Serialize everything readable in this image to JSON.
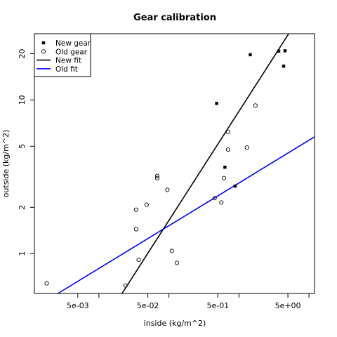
{
  "chart_data": {
    "type": "scatter",
    "title": "Gear calibration",
    "xlabel": "inside (kg/m^2)",
    "ylabel": "outside (kg/m^2)",
    "x_scale": "log",
    "y_scale": "log",
    "xlim": [
      0.0012,
      12
    ],
    "ylim": [
      0.55,
      27
    ],
    "x_ticks": [
      {
        "value": 0.005,
        "label": "5e-03"
      },
      {
        "value": 0.05,
        "label": "5e-02"
      },
      {
        "value": 0.5,
        "label": "5e-01"
      },
      {
        "value": 5,
        "label": "5e+00"
      }
    ],
    "x_minor_ticks": [
      0.01,
      0.1,
      1,
      10
    ],
    "y_ticks": [
      {
        "value": 1,
        "label": "1"
      },
      {
        "value": 2,
        "label": "2"
      },
      {
        "value": 5,
        "label": "5"
      },
      {
        "value": 10,
        "label": "10"
      },
      {
        "value": 20,
        "label": "20"
      }
    ],
    "grid": false,
    "legend_position": "top-left",
    "series": [
      {
        "name": "New gear",
        "marker": "filled-square",
        "color": "#000000",
        "points": [
          [
            0.48,
            9.5
          ],
          [
            0.88,
            2.75
          ],
          [
            0.63,
            3.65
          ],
          [
            1.45,
            19.7
          ],
          [
            3.7,
            20.8
          ],
          [
            4.55,
            20.9
          ],
          [
            4.35,
            16.6
          ]
        ]
      },
      {
        "name": "Old gear",
        "marker": "open-circle",
        "color": "#000000",
        "points": [
          [
            0.0018,
            0.64
          ],
          [
            0.024,
            0.62
          ],
          [
            0.034,
            1.93
          ],
          [
            0.034,
            1.44
          ],
          [
            0.037,
            0.91
          ],
          [
            0.048,
            2.08
          ],
          [
            0.068,
            3.1
          ],
          [
            0.068,
            3.2
          ],
          [
            0.095,
            2.6
          ],
          [
            0.11,
            1.04
          ],
          [
            0.13,
            0.87
          ],
          [
            0.45,
            2.3
          ],
          [
            0.56,
            2.15
          ],
          [
            0.61,
            3.1
          ],
          [
            0.7,
            6.2
          ],
          [
            0.7,
            4.75
          ],
          [
            1.3,
            4.9
          ],
          [
            1.72,
            9.2
          ]
        ]
      },
      {
        "name": "New fit",
        "type": "line",
        "color": "#000000",
        "points": [
          [
            0.0214,
            0.55
          ],
          [
            5.14,
            27
          ]
        ]
      },
      {
        "name": "Old fit",
        "type": "line",
        "color": "#0000ff",
        "points": [
          [
            0.0026,
            0.55
          ],
          [
            12,
            5.75
          ]
        ]
      }
    ]
  }
}
